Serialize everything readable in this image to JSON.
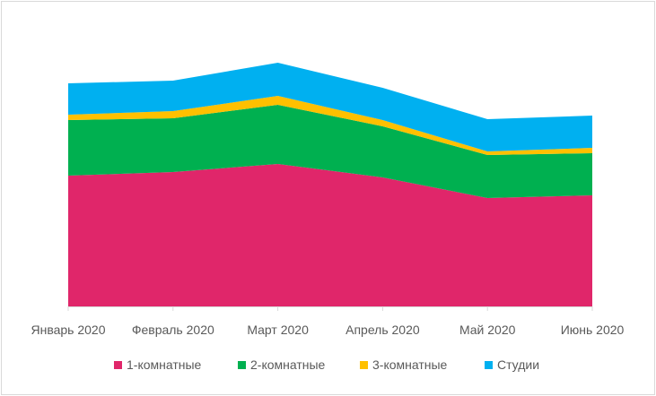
{
  "chart_data": {
    "type": "area",
    "stacked": true,
    "title": "",
    "xlabel": "",
    "ylabel": "",
    "categories": [
      "Январь 2020",
      "Февраль 2020",
      "Март 2020",
      "Апрель 2020",
      "Май 2020",
      "Июнь 2020"
    ],
    "series": [
      {
        "name": "1-комнатные",
        "color": "#E0266A",
        "values": [
          146,
          150,
          159,
          144,
          121,
          124
        ]
      },
      {
        "name": "2-комнатные",
        "color": "#00B050",
        "values": [
          62,
          60,
          66,
          57,
          48,
          47
        ]
      },
      {
        "name": "3-комнатные",
        "color": "#FFC000",
        "values": [
          6,
          8,
          10,
          7,
          4,
          6
        ]
      },
      {
        "name": "Студии",
        "color": "#00B0F0",
        "values": [
          35,
          34,
          37,
          36,
          36,
          36
        ]
      }
    ],
    "ylim": [
      0,
      270
    ],
    "grid": false,
    "legend_position": "bottom",
    "y_axis_visible": false
  }
}
